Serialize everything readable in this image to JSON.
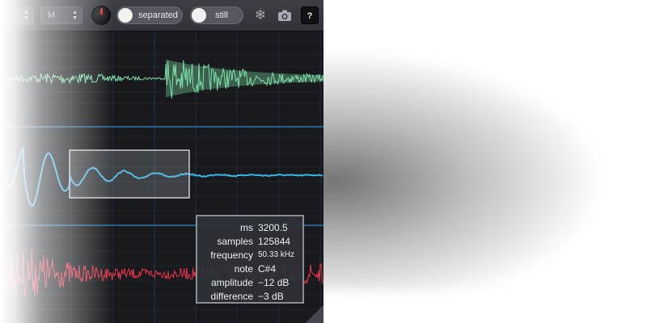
{
  "toolbar": {
    "channel_select": {
      "value": ""
    },
    "mode_select": {
      "value": "M"
    },
    "separated_toggle": {
      "label": "separated"
    },
    "still_toggle": {
      "label": "still"
    },
    "freeze_icon": "snowflake-icon",
    "snapshot_icon": "camera-icon",
    "help_label": "?"
  },
  "colors": {
    "green_wave": "#7ee0a8",
    "blue_wave": "#39b4e6",
    "red_wave": "#e8344e",
    "grid": "#2a3a55",
    "lane_divider": "#2f86c4"
  },
  "readout": {
    "rows": [
      {
        "key": "ms",
        "value": "3200.5"
      },
      {
        "key": "samples",
        "value": "125844"
      },
      {
        "key": "frequency",
        "value": "50.33 kHz"
      },
      {
        "key": "note",
        "value": "C#4"
      },
      {
        "key": "amplitude",
        "value": "−12 dB"
      },
      {
        "key": "difference",
        "value": "−3 dB"
      }
    ]
  }
}
